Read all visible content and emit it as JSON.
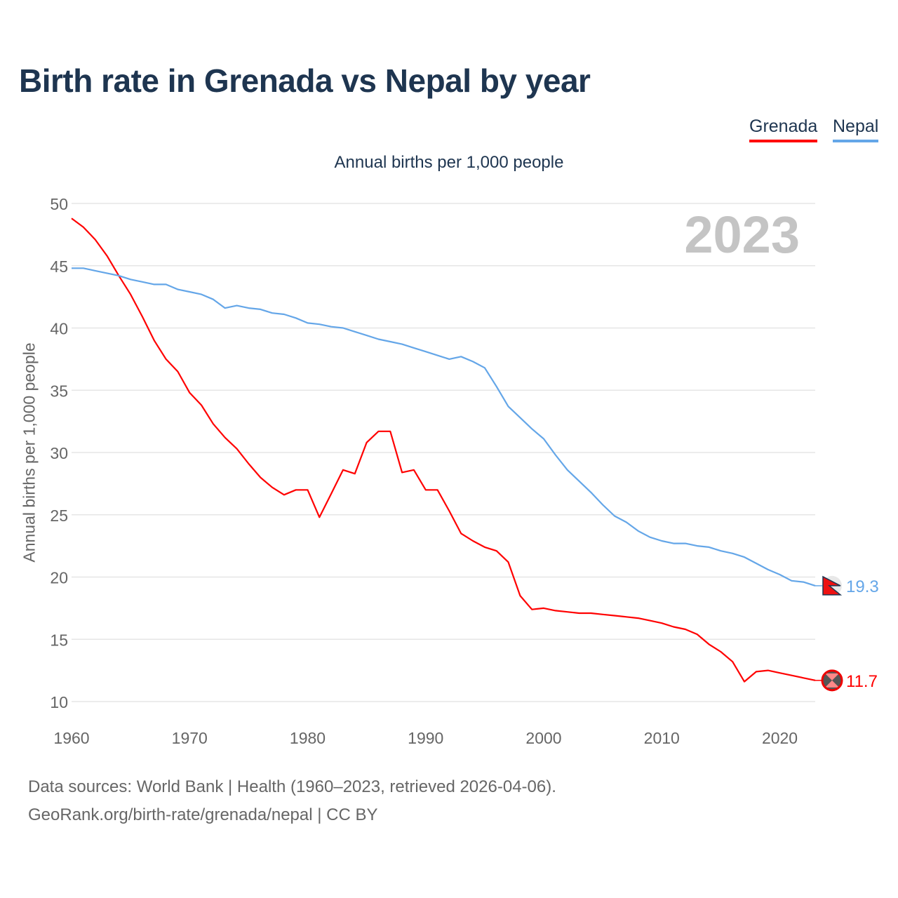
{
  "title": "Birth rate in Grenada vs Nepal by year",
  "subtitle": "Annual births per 1,000 people",
  "sources": {
    "line1": "Data sources: World Bank | Health (1960–2023, retrieved 2026-04-06).",
    "line2": "GeoRank.org/birth-rate/grenada/nepal | CC BY"
  },
  "chart_data": {
    "type": "line",
    "title": "Birth rate in Grenada vs Nepal by year",
    "ylabel": "Annual births per 1,000 people",
    "xlabel": "",
    "year_label": "2023",
    "xlim": [
      1960,
      2023
    ],
    "ylim": [
      10,
      50
    ],
    "xticks": [
      1960,
      1970,
      1980,
      1990,
      2000,
      2010,
      2020
    ],
    "yticks": [
      10,
      15,
      20,
      25,
      30,
      35,
      40,
      45,
      50
    ],
    "grid": true,
    "legend_position": "top-right",
    "x_start": 1960,
    "series": [
      {
        "name": "Grenada",
        "color": "#ff0000",
        "end_label": "11.7",
        "values": [
          48.8,
          48.1,
          47.1,
          45.8,
          44.2,
          42.7,
          40.9,
          39.0,
          37.5,
          36.5,
          34.8,
          33.8,
          32.3,
          31.2,
          30.3,
          29.1,
          28.0,
          27.2,
          26.6,
          27.0,
          27.0,
          24.8,
          26.7,
          28.6,
          28.3,
          30.8,
          31.7,
          31.7,
          28.4,
          28.6,
          27.0,
          27.0,
          25.3,
          23.5,
          22.9,
          22.4,
          22.1,
          21.2,
          18.5,
          17.4,
          17.5,
          17.3,
          17.2,
          17.1,
          17.1,
          17.0,
          16.9,
          16.8,
          16.7,
          16.5,
          16.3,
          16.0,
          15.8,
          15.4,
          14.6,
          14.0,
          13.2,
          11.6,
          12.4,
          12.5,
          12.3,
          12.1,
          11.9,
          11.7
        ]
      },
      {
        "name": "Nepal",
        "color": "#64a6e8",
        "end_label": "19.3",
        "values": [
          44.8,
          44.8,
          44.6,
          44.4,
          44.2,
          43.9,
          43.7,
          43.5,
          43.5,
          43.1,
          42.9,
          42.7,
          42.3,
          41.6,
          41.8,
          41.6,
          41.5,
          41.2,
          41.1,
          40.8,
          40.4,
          40.3,
          40.1,
          40.0,
          39.7,
          39.4,
          39.1,
          38.9,
          38.7,
          38.4,
          38.1,
          37.8,
          37.5,
          37.7,
          37.3,
          36.8,
          35.3,
          33.7,
          32.8,
          31.9,
          31.1,
          29.8,
          28.6,
          27.7,
          26.8,
          25.8,
          24.9,
          24.4,
          23.7,
          23.2,
          22.9,
          22.7,
          22.7,
          22.5,
          22.4,
          22.1,
          21.9,
          21.6,
          21.1,
          20.6,
          20.2,
          19.7,
          19.6,
          19.3
        ]
      }
    ]
  }
}
